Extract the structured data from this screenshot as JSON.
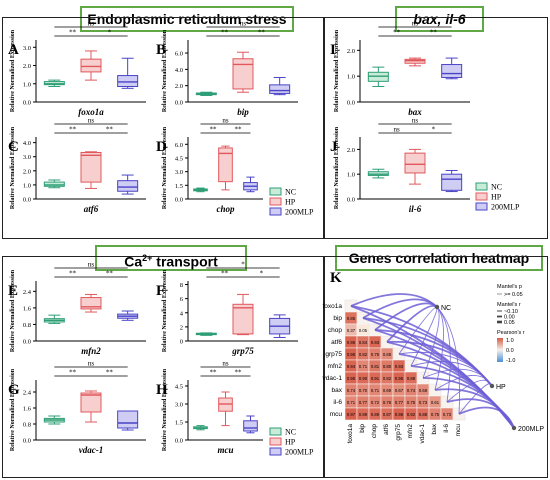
{
  "sections": {
    "er": {
      "title": "Endoplasmic reticulum stress"
    },
    "bax": {
      "title": "bax, il-6"
    },
    "ca": {
      "title_prefix": "Ca",
      "title_sup": "2+",
      "title_suffix": " transport"
    },
    "heatmap": {
      "title": "Genes correlation heatmap"
    }
  },
  "ylabel": "Relative Normalized Expression",
  "legend": {
    "items": [
      {
        "label": "NC",
        "color": "#2e9e76"
      },
      {
        "label": "HP",
        "color": "#e0585c"
      },
      {
        "label": "200MLP",
        "color": "#4a43c8"
      }
    ]
  },
  "chart_data": [
    {
      "type": "box",
      "panel": "A",
      "gene": "foxo1a",
      "yticks": [
        "0.0",
        "1.0",
        "2.0",
        "3.0"
      ],
      "ylim": [
        0,
        3.4
      ],
      "boxes": [
        {
          "group": "NC",
          "min": 0.85,
          "q1": 0.95,
          "median": 1.0,
          "q3": 1.12,
          "max": 1.2
        },
        {
          "group": "HP",
          "min": 1.2,
          "q1": 1.65,
          "median": 1.95,
          "q3": 2.35,
          "max": 2.8
        },
        {
          "group": "200MLP",
          "min": 0.75,
          "q1": 0.85,
          "median": 1.1,
          "q3": 1.45,
          "max": 2.4
        }
      ],
      "sig": [
        {
          "from": 0,
          "to": 2,
          "label": "ns",
          "level": 2
        },
        {
          "from": 0,
          "to": 1,
          "label": "**",
          "level": 1
        },
        {
          "from": 1,
          "to": 2,
          "label": "*",
          "level": 1
        }
      ]
    },
    {
      "type": "box",
      "panel": "B",
      "gene": "bip",
      "yticks": [
        "0.0",
        "2.0",
        "4.0",
        "6.0"
      ],
      "ylim": [
        0,
        7.6
      ],
      "boxes": [
        {
          "group": "NC",
          "min": 0.8,
          "q1": 0.9,
          "median": 1.0,
          "q3": 1.1,
          "max": 1.2
        },
        {
          "group": "HP",
          "min": 1.2,
          "q1": 1.6,
          "median": 4.6,
          "q3": 5.3,
          "max": 6.1
        },
        {
          "group": "200MLP",
          "min": 0.9,
          "q1": 1.05,
          "median": 1.4,
          "q3": 2.1,
          "max": 3.0
        }
      ],
      "sig": [
        {
          "from": 0,
          "to": 2,
          "label": "ns",
          "level": 2
        },
        {
          "from": 0,
          "to": 1,
          "label": "**",
          "level": 1
        },
        {
          "from": 1,
          "to": 2,
          "label": "**",
          "level": 1
        }
      ]
    },
    {
      "type": "box",
      "panel": "C",
      "gene": "atf6",
      "yticks": [
        "0.0",
        "1.0",
        "2.0",
        "3.0",
        "4.0"
      ],
      "ylim": [
        0,
        4.4
      ],
      "boxes": [
        {
          "group": "NC",
          "min": 0.8,
          "q1": 0.9,
          "median": 1.0,
          "q3": 1.2,
          "max": 1.35
        },
        {
          "group": "HP",
          "min": 0.75,
          "q1": 1.2,
          "median": 3.1,
          "q3": 3.3,
          "max": 3.35
        },
        {
          "group": "200MLP",
          "min": 0.35,
          "q1": 0.55,
          "median": 0.85,
          "q3": 1.3,
          "max": 1.7
        }
      ],
      "sig": [
        {
          "from": 0,
          "to": 2,
          "label": "ns",
          "level": 2
        },
        {
          "from": 0,
          "to": 1,
          "label": "**",
          "level": 1
        },
        {
          "from": 1,
          "to": 2,
          "label": "**",
          "level": 1
        }
      ]
    },
    {
      "type": "box",
      "panel": "D",
      "gene": "chop",
      "yticks": [
        "0.0",
        "1.5",
        "3.0",
        "4.5",
        "6.0"
      ],
      "ylim": [
        0,
        6.8
      ],
      "boxes": [
        {
          "group": "NC",
          "min": 0.8,
          "q1": 0.9,
          "median": 1.0,
          "q3": 1.1,
          "max": 1.2
        },
        {
          "group": "HP",
          "min": 1.0,
          "q1": 1.9,
          "median": 5.0,
          "q3": 5.6,
          "max": 5.8
        },
        {
          "group": "200MLP",
          "min": 0.8,
          "q1": 1.0,
          "median": 1.4,
          "q3": 1.8,
          "max": 2.4
        }
      ],
      "sig": [
        {
          "from": 0,
          "to": 2,
          "label": "ns",
          "level": 2
        },
        {
          "from": 0,
          "to": 1,
          "label": "**",
          "level": 1
        },
        {
          "from": 1,
          "to": 2,
          "label": "**",
          "level": 1
        }
      ]
    },
    {
      "type": "box",
      "panel": "E",
      "gene": "mfn2",
      "yticks": [
        "0.0",
        "0.8",
        "1.6",
        "2.4"
      ],
      "ylim": [
        0,
        2.9
      ],
      "boxes": [
        {
          "group": "NC",
          "min": 0.85,
          "q1": 0.92,
          "median": 1.0,
          "q3": 1.08,
          "max": 1.25
        },
        {
          "group": "HP",
          "min": 1.4,
          "q1": 1.55,
          "median": 1.65,
          "q3": 2.1,
          "max": 2.25
        },
        {
          "group": "200MLP",
          "min": 1.0,
          "q1": 1.1,
          "median": 1.2,
          "q3": 1.3,
          "max": 1.45
        }
      ],
      "sig": [
        {
          "from": 0,
          "to": 2,
          "label": "ns",
          "level": 2
        },
        {
          "from": 0,
          "to": 1,
          "label": "**",
          "level": 1
        },
        {
          "from": 1,
          "to": 2,
          "label": "**",
          "level": 1
        }
      ]
    },
    {
      "type": "box",
      "panel": "F",
      "gene": "grp75",
      "yticks": [
        "0",
        "2",
        "4",
        "6",
        "8"
      ],
      "ylim": [
        0,
        8.5
      ],
      "boxes": [
        {
          "group": "NC",
          "min": 0.8,
          "q1": 0.9,
          "median": 1.0,
          "q3": 1.1,
          "max": 1.15
        },
        {
          "group": "HP",
          "min": 0.9,
          "q1": 1.0,
          "median": 4.7,
          "q3": 5.2,
          "max": 6.6
        },
        {
          "group": "200MLP",
          "min": 0.5,
          "q1": 1.0,
          "median": 2.1,
          "q3": 3.2,
          "max": 3.7
        }
      ],
      "sig": [
        {
          "from": 0,
          "to": 2,
          "label": "*",
          "level": 2
        },
        {
          "from": 0,
          "to": 1,
          "label": "**",
          "level": 1
        },
        {
          "from": 1,
          "to": 2,
          "label": "*",
          "level": 1
        }
      ]
    },
    {
      "type": "box",
      "panel": "G",
      "gene": "vdac-1",
      "yticks": [
        "0.0",
        "0.8",
        "1.6",
        "2.4"
      ],
      "ylim": [
        0,
        3.0
      ],
      "boxes": [
        {
          "group": "NC",
          "min": 0.8,
          "q1": 0.9,
          "median": 1.0,
          "q3": 1.08,
          "max": 1.2
        },
        {
          "group": "HP",
          "min": 0.9,
          "q1": 1.4,
          "median": 2.25,
          "q3": 2.35,
          "max": 2.45
        },
        {
          "group": "200MLP",
          "min": 0.5,
          "q1": 0.6,
          "median": 0.85,
          "q3": 1.45,
          "max": 1.45
        }
      ],
      "sig": [
        {
          "from": 0,
          "to": 2,
          "label": "ns",
          "level": 2
        },
        {
          "from": 0,
          "to": 1,
          "label": "**",
          "level": 1
        },
        {
          "from": 1,
          "to": 2,
          "label": "**",
          "level": 1
        }
      ]
    },
    {
      "type": "box",
      "panel": "H",
      "gene": "mcu",
      "yticks": [
        "0.0",
        "1.5",
        "3.0",
        "4.5"
      ],
      "ylim": [
        0,
        5.0
      ],
      "boxes": [
        {
          "group": "NC",
          "min": 0.85,
          "q1": 0.95,
          "median": 1.0,
          "q3": 1.1,
          "max": 1.2
        },
        {
          "group": "HP",
          "min": 1.2,
          "q1": 2.4,
          "median": 3.0,
          "q3": 3.5,
          "max": 4.0
        },
        {
          "group": "200MLP",
          "min": 0.6,
          "q1": 0.75,
          "median": 1.0,
          "q3": 1.6,
          "max": 2.0
        }
      ],
      "sig": [
        {
          "from": 0,
          "to": 2,
          "label": "ns",
          "level": 2
        },
        {
          "from": 0,
          "to": 1,
          "label": "**",
          "level": 1
        },
        {
          "from": 1,
          "to": 2,
          "label": "**",
          "level": 1
        }
      ]
    },
    {
      "type": "box",
      "panel": "I",
      "gene": "bax",
      "yticks": [
        "0.0",
        "1.0",
        "2.0"
      ],
      "ylim": [
        0,
        2.4
      ],
      "boxes": [
        {
          "group": "NC",
          "min": 0.6,
          "q1": 0.8,
          "median": 1.0,
          "q3": 1.15,
          "max": 1.35
        },
        {
          "group": "HP",
          "min": 1.4,
          "q1": 1.5,
          "median": 1.6,
          "q3": 1.65,
          "max": 1.7
        },
        {
          "group": "200MLP",
          "min": 0.9,
          "q1": 0.95,
          "median": 1.1,
          "q3": 1.45,
          "max": 1.7
        }
      ],
      "sig": [
        {
          "from": 0,
          "to": 2,
          "label": "ns",
          "level": 2
        },
        {
          "from": 0,
          "to": 1,
          "label": "**",
          "level": 1
        },
        {
          "from": 1,
          "to": 2,
          "label": "**",
          "level": 1
        }
      ]
    },
    {
      "type": "box",
      "panel": "J",
      "gene": "il-6",
      "yticks": [
        "0.0",
        "1.0",
        "2.0"
      ],
      "ylim": [
        0,
        2.5
      ],
      "boxes": [
        {
          "group": "NC",
          "min": 0.85,
          "q1": 0.95,
          "median": 1.0,
          "q3": 1.1,
          "max": 1.2
        },
        {
          "group": "HP",
          "min": 0.6,
          "q1": 1.05,
          "median": 1.4,
          "q3": 1.85,
          "max": 2.0
        },
        {
          "group": "200MLP",
          "min": 0.3,
          "q1": 0.35,
          "median": 0.8,
          "q3": 1.0,
          "max": 1.15
        }
      ],
      "sig": [
        {
          "from": 0,
          "to": 2,
          "label": "ns",
          "level": 2
        },
        {
          "from": 0,
          "to": 1,
          "label": "ns",
          "level": 1
        },
        {
          "from": 1,
          "to": 2,
          "label": "*",
          "level": 1
        }
      ]
    },
    {
      "type": "heatmap",
      "panel": "K",
      "genes": [
        "foxo1a",
        "bip",
        "chop",
        "atf6",
        "grp75",
        "mfn2",
        "vdac-1",
        "bax",
        "il-6",
        "mcu"
      ],
      "values": [
        [],
        [
          0.85
        ],
        [
          0.37,
          0.05
        ],
        [
          0.95,
          0.84,
          0.93
        ],
        [
          0.96,
          0.82,
          0.76,
          0.68
        ],
        [
          0.94,
          0.71,
          0.81,
          0.8,
          0.93
        ],
        [
          0.95,
          0.9,
          0.91,
          0.82,
          0.95,
          0.88
        ],
        [
          0.74,
          0.7,
          0.71,
          0.69,
          0.67,
          0.74,
          0.68
        ],
        [
          0.71,
          0.77,
          0.72,
          0.76,
          0.77,
          0.75,
          0.73,
          0.61
        ],
        [
          0.97,
          0.89,
          0.89,
          0.87,
          0.96,
          0.92,
          0.88,
          0.75,
          0.73
        ]
      ],
      "mantel_targets": [
        "NC",
        "HP",
        "200MLP"
      ],
      "legend": {
        "p_title": "Mantel's p",
        "p_items": [
          ">= 0.05"
        ],
        "r_title": "Mantel's r",
        "r_items": [
          "~0.10",
          "0.00",
          "0.05"
        ],
        "pearson_title": "Pearson's r",
        "pearson_ticks": [
          "1.0",
          "0.0",
          "-1.0"
        ]
      }
    }
  ]
}
